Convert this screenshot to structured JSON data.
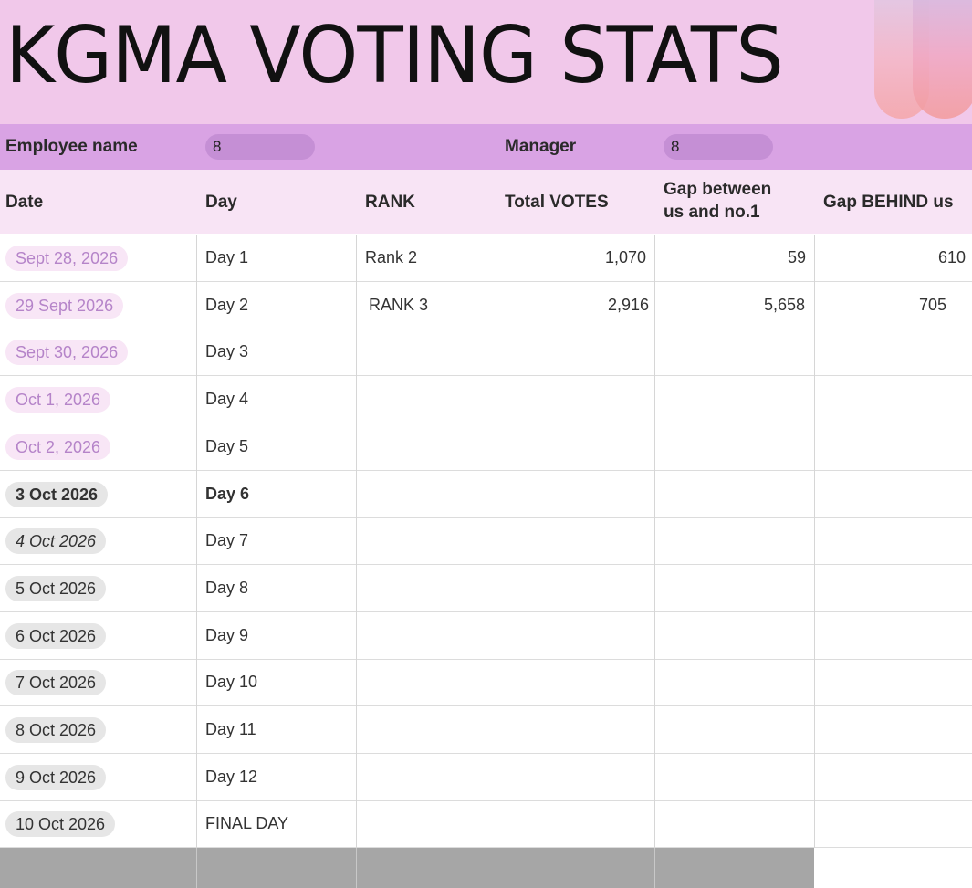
{
  "title": "KGMA VOTING STATS",
  "info": {
    "employee_label": "Employee name",
    "employee_value": "8",
    "manager_label": "Manager",
    "manager_value": "8"
  },
  "columns": {
    "date": "Date",
    "day": "Day",
    "rank": "RANK",
    "total_votes": "Total VOTES",
    "gap_no1_line1": "Gap between",
    "gap_no1_line2": "us and no.1",
    "gap_behind": "Gap BEHIND us"
  },
  "rows": [
    {
      "date": "Sept 28, 2026",
      "day": "Day 1",
      "rank": "Rank 2",
      "total": "1,070",
      "gap_no1": "59",
      "gap_behind": "610"
    },
    {
      "date": "29 Sept 2026",
      "day": "Day 2",
      "rank": "RANK 3",
      "total": "2,916",
      "gap_no1": "5,658",
      "gap_behind": "705"
    },
    {
      "date": "Sept 30, 2026",
      "day": "Day 3",
      "rank": "",
      "total": "",
      "gap_no1": "",
      "gap_behind": ""
    },
    {
      "date": "Oct 1, 2026",
      "day": "Day 4",
      "rank": "",
      "total": "",
      "gap_no1": "",
      "gap_behind": ""
    },
    {
      "date": "Oct 2, 2026",
      "day": "Day 5",
      "rank": "",
      "total": "",
      "gap_no1": "",
      "gap_behind": ""
    },
    {
      "date": "3 Oct 2026",
      "day": "Day 6",
      "rank": "",
      "total": "",
      "gap_no1": "",
      "gap_behind": ""
    },
    {
      "date": "4 Oct 2026",
      "day": "Day 7",
      "rank": "",
      "total": "",
      "gap_no1": "",
      "gap_behind": ""
    },
    {
      "date": "5 Oct 2026",
      "day": "Day 8",
      "rank": "",
      "total": "",
      "gap_no1": "",
      "gap_behind": ""
    },
    {
      "date": "6 Oct 2026",
      "day": "Day 9",
      "rank": "",
      "total": "",
      "gap_no1": "",
      "gap_behind": ""
    },
    {
      "date": "7 Oct 2026",
      "day": "Day 10",
      "rank": "",
      "total": "",
      "gap_no1": "",
      "gap_behind": ""
    },
    {
      "date": "8 Oct 2026",
      "day": "Day 11",
      "rank": "",
      "total": "",
      "gap_no1": "",
      "gap_behind": ""
    },
    {
      "date": "9 Oct 2026",
      "day": "Day 12",
      "rank": "",
      "total": "",
      "gap_no1": "",
      "gap_behind": ""
    },
    {
      "date": "10 Oct 2026",
      "day": "FINAL DAY",
      "rank": "",
      "total": "",
      "gap_no1": "",
      "gap_behind": ""
    }
  ],
  "colors": {
    "title_bg": "#f1c8ea",
    "info_bg": "#d9a3e4",
    "header_bg": "#f8e4f5",
    "pill_pink_text": "#b584c9",
    "pill_gray_bg": "#e6e6e6"
  }
}
